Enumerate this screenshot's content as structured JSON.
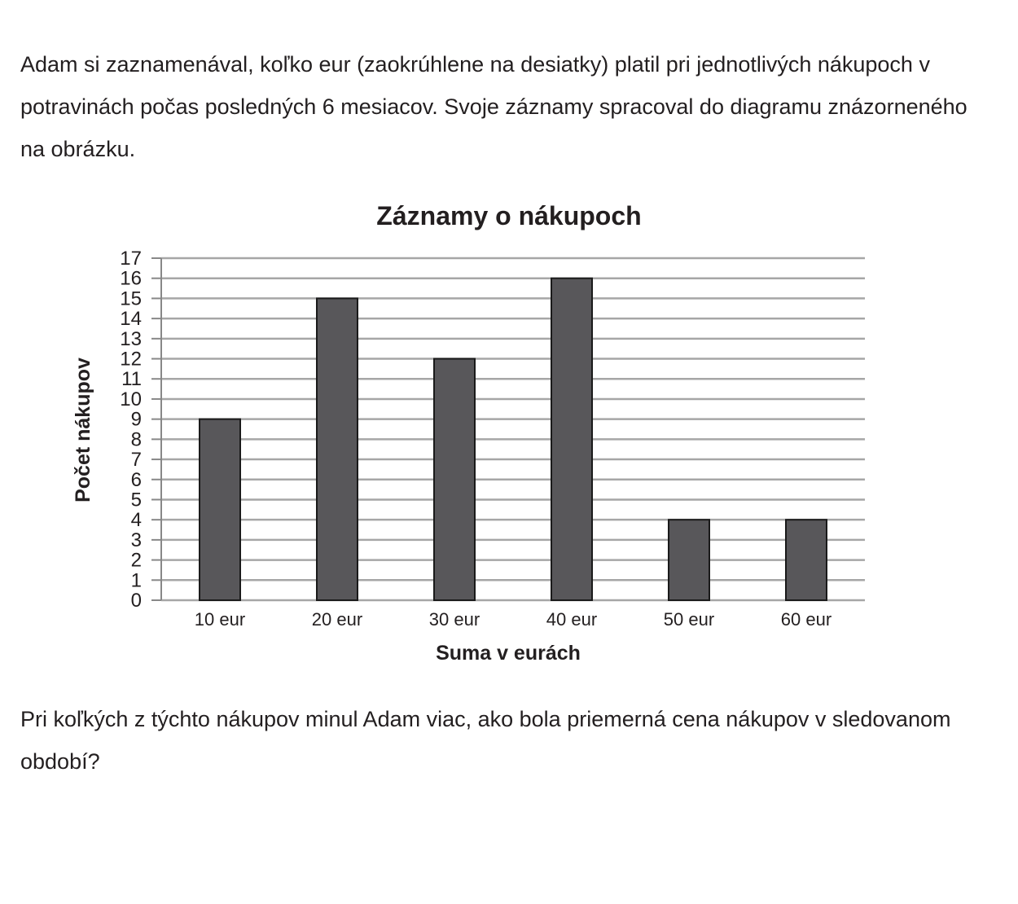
{
  "text": {
    "intro": "Adam si zaznamenával, koľko eur (zaokrúhlene na desiatky) platil pri jednotlivých nákupoch v potravinách počas posledných 6 mesiacov. Svoje záznamy spracoval do diagramu znázorneného na obrázku.",
    "question": "Pri koľkých z týchto nákupov minul Adam viac, ako bola priemerná cena nákupov v sledovanom období?"
  },
  "chart_data": {
    "type": "bar",
    "title": "Záznamy o nákupoch",
    "xlabel": "Suma v eurách",
    "ylabel": "Počet nákupov",
    "categories": [
      "10 eur",
      "20 eur",
      "30 eur",
      "40 eur",
      "50 eur",
      "60 eur"
    ],
    "values": [
      9,
      15,
      12,
      16,
      4,
      4
    ],
    "ylim": [
      0,
      17
    ],
    "yticks": [
      0,
      1,
      2,
      3,
      4,
      5,
      6,
      7,
      8,
      9,
      10,
      11,
      12,
      13,
      14,
      15,
      16,
      17
    ],
    "grid": true,
    "colors": {
      "bar": "#58575a",
      "bar_edge": "#1a1a1a",
      "grid": "#a6a6a6",
      "axis": "#888888"
    }
  }
}
